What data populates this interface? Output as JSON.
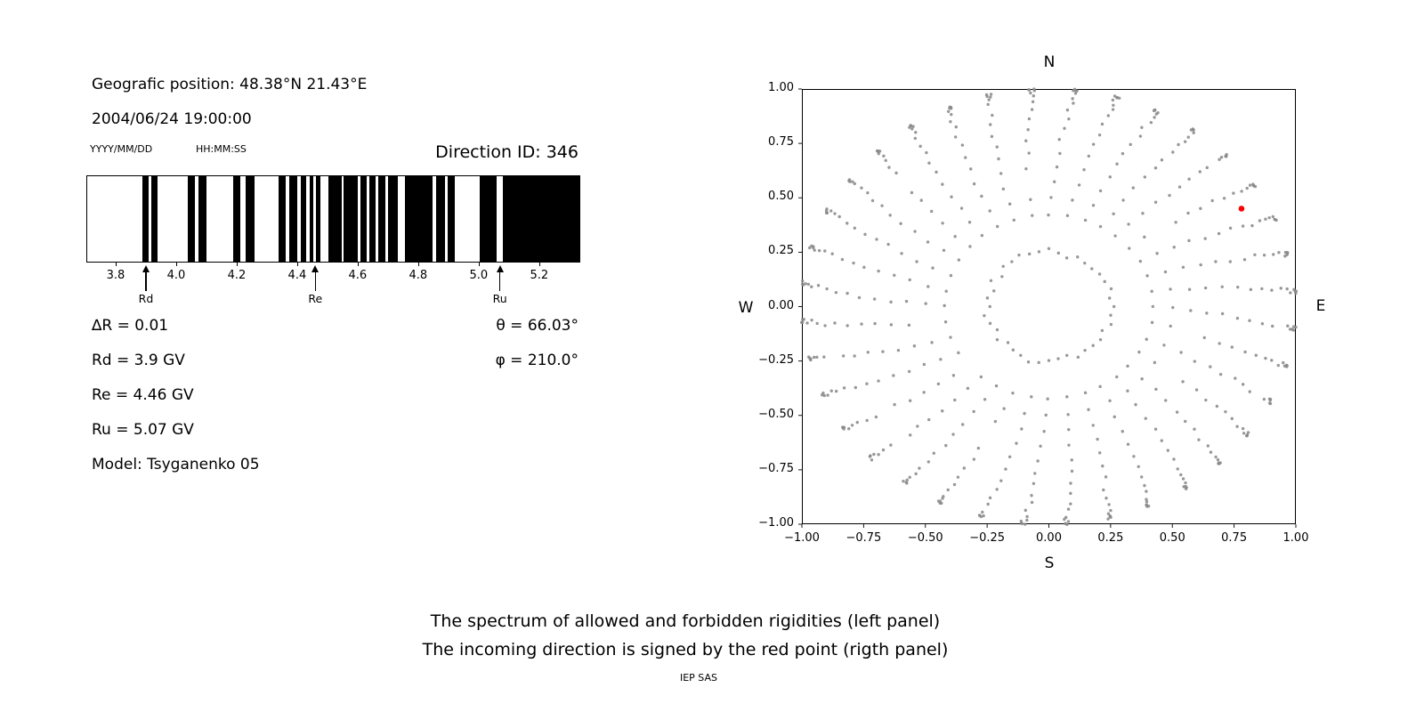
{
  "header": {
    "position": "Geografic position: 48.38°N 21.43°E",
    "datetime": "2004/06/24 19:00:00",
    "date_format_label": "YYYY/MM/DD",
    "time_format_label": "HH:MM:SS",
    "direction_id_label": "Direction ID: 346"
  },
  "spectrum_info": {
    "delta_r": "∆R = 0.01",
    "rd": "Rd = 3.9 GV",
    "re": "Re = 4.46 GV",
    "ru": "Ru = 5.07 GV",
    "model": "Model: Tsyganenko 05"
  },
  "direction_info": {
    "theta": "θ = 66.03°",
    "phi": "φ = 210.0°"
  },
  "caption": {
    "line1": "The spectrum of allowed and forbidden rigidities (left panel)",
    "line2": "The incoming direction is signed by the red point (rigth panel)",
    "credit": "IEP SAS"
  },
  "chart_data": [
    {
      "type": "bar",
      "description": "Barcode-style spectrum of allowed (black) and forbidden (white) rigidities",
      "xlim": [
        3.703,
        5.33
      ],
      "xticks": [
        3.8,
        4.0,
        4.2,
        4.4,
        4.6,
        4.8,
        5.0,
        5.2
      ],
      "delta_r_gv": 0.01,
      "bar_color": "#000000",
      "background": "#ffffff",
      "black_intervals_gv": [
        [
          3.885,
          3.905
        ],
        [
          3.916,
          3.936
        ],
        [
          4.036,
          4.06
        ],
        [
          4.072,
          4.098
        ],
        [
          4.186,
          4.21
        ],
        [
          4.226,
          4.256
        ],
        [
          4.336,
          4.36
        ],
        [
          4.372,
          4.398
        ],
        [
          4.41,
          4.428
        ],
        [
          4.438,
          4.45
        ],
        [
          4.458,
          4.474
        ],
        [
          4.5,
          4.544
        ],
        [
          4.55,
          4.598
        ],
        [
          4.606,
          4.626
        ],
        [
          4.636,
          4.656
        ],
        [
          4.664,
          4.688
        ],
        [
          4.696,
          4.73
        ],
        [
          4.754,
          4.844
        ],
        [
          4.856,
          4.886
        ],
        [
          4.894,
          4.918
        ],
        [
          5.0,
          5.056
        ],
        [
          5.076,
          5.33
        ]
      ],
      "markers": [
        {
          "label": "Rd",
          "value_gv": 3.9
        },
        {
          "label": "Re",
          "value_gv": 4.46
        },
        {
          "label": "Ru",
          "value_gv": 5.07
        }
      ]
    },
    {
      "type": "scatter",
      "description": "Sky map of computed directions (gray dot grid); red dot = incoming direction",
      "xlim": [
        -1,
        1
      ],
      "ylim": [
        -1,
        1
      ],
      "xticks": [
        -1,
        -0.75,
        -0.5,
        -0.25,
        0,
        0.25,
        0.5,
        0.75,
        1
      ],
      "yticks": [
        -1,
        -0.75,
        -0.5,
        -0.25,
        0,
        0.25,
        0.5,
        0.75,
        1
      ],
      "compass": {
        "top": "N",
        "bottom": "S",
        "left": "W",
        "right": "E"
      },
      "dot_color": "#8a8a8a",
      "dot_radius_px": 1.7,
      "red_point": {
        "x": 0.78,
        "y": 0.45,
        "color": "#ff0000",
        "radius_px": 3.3
      },
      "direction": {
        "id": 346,
        "theta_deg": 66.03,
        "phi_deg": 210.0
      },
      "grid": {
        "ring": {
          "radius": 0.25,
          "count": 40,
          "jitter": 0.018
        },
        "spokes": {
          "count": 36,
          "azimuth_step_deg": 10,
          "zenith_deg": [
            25,
            30,
            35,
            40,
            45,
            50,
            55,
            60,
            65,
            70,
            75,
            80,
            84,
            87,
            89,
            90
          ],
          "swirl_deg": 10,
          "note": "dot radius = sin(zenith); azimuth clockwise from N; dense clusters at outer rim"
        }
      }
    }
  ]
}
